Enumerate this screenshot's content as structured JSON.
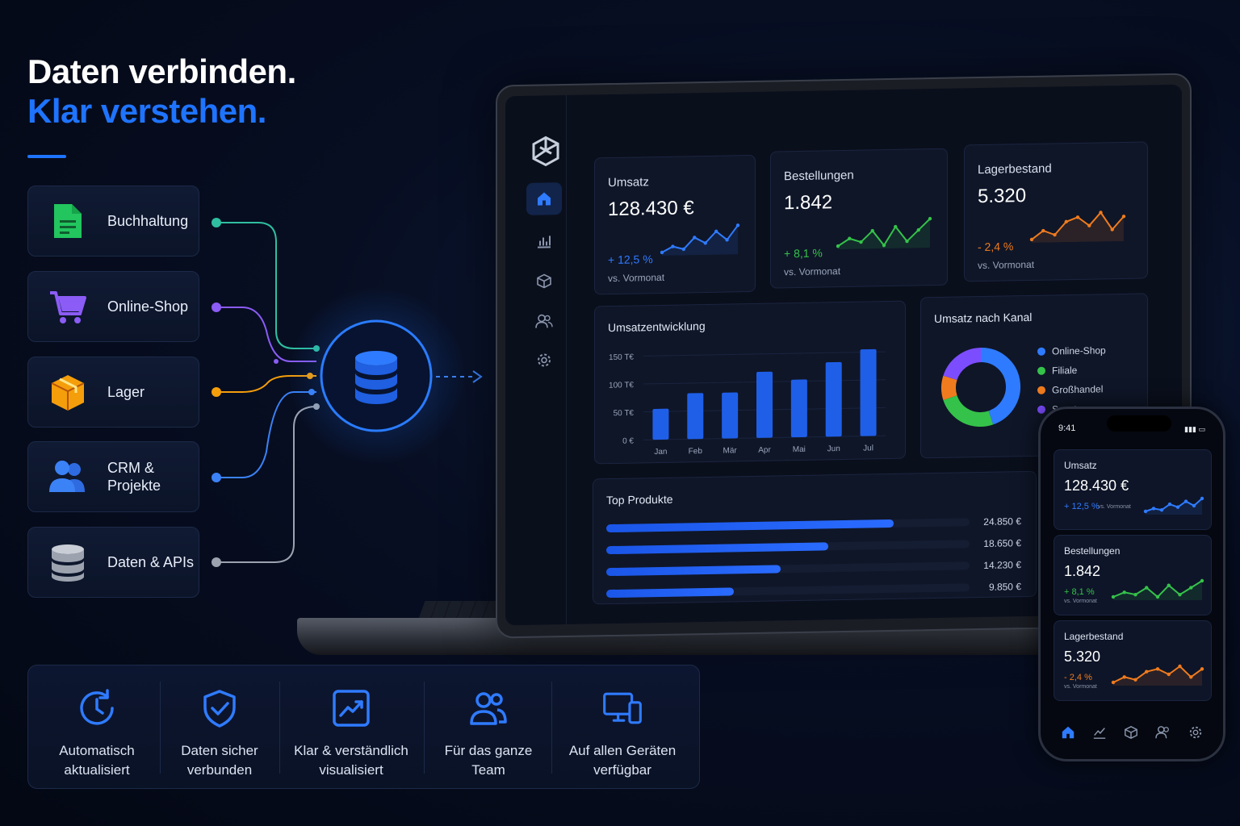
{
  "hero": {
    "line1": "Daten verbinden.",
    "line2": "Klar verstehen."
  },
  "sources": [
    {
      "label": "Buchhaltung",
      "icon": "spreadsheet-icon",
      "color": "#22c55e"
    },
    {
      "label": "Online-Shop",
      "icon": "shopping-cart-icon",
      "color": "#8b5cf6"
    },
    {
      "label": "Lager",
      "icon": "box-icon",
      "color": "#f59e0b"
    },
    {
      "label": "CRM &\nProjekte",
      "icon": "users-icon",
      "color": "#3b82f6"
    },
    {
      "label": "Daten & APIs",
      "icon": "database-icon",
      "color": "#9ca3af"
    }
  ],
  "hub": {
    "icon": "database-icon",
    "color": "#1f74ff"
  },
  "dashboard": {
    "nav": [
      "home-icon",
      "bar-chart-icon",
      "cube-icon",
      "users-icon",
      "settings-icon"
    ],
    "kpis": [
      {
        "title": "Umsatz",
        "value": "128.430 €",
        "delta": "+ 12,5 %",
        "vs": "vs. Vormonat",
        "color": "#2f7bff",
        "spark": [
          4,
          6,
          5,
          9,
          7,
          11,
          8,
          13
        ]
      },
      {
        "title": "Bestellungen",
        "value": "1.842",
        "delta": "+ 8,1 %",
        "vs": "vs. Vormonat",
        "color": "#35c24a",
        "spark": [
          5,
          7,
          6,
          9,
          5,
          10,
          6,
          9,
          12
        ]
      },
      {
        "title": "Lagerbestand",
        "value": "5.320",
        "delta": "- 2,4 %",
        "vs": "vs. Vormonat",
        "color": "#f07b1e",
        "spark": [
          4,
          6,
          5,
          8,
          9,
          7,
          10,
          6,
          9
        ]
      }
    ],
    "umsatzentwicklung": {
      "title": "Umsatzentwicklung",
      "chart_data": {
        "type": "bar",
        "categories": [
          "Jan",
          "Feb",
          "Mär",
          "Apr",
          "Mai",
          "Jun",
          "Jul"
        ],
        "values": [
          55,
          82,
          82,
          118,
          103,
          133,
          155
        ],
        "yticks": [
          "150 T€",
          "100 T€",
          "50 T€",
          "0 €"
        ],
        "ylim": [
          0,
          150
        ],
        "ylabel": "",
        "xlabel": "",
        "title": "Umsatzentwicklung"
      }
    },
    "kanal": {
      "title": "Umsatz nach Kanal",
      "legend": [
        {
          "label": "Online-Shop",
          "color": "#2f7bff"
        },
        {
          "label": "Filiale",
          "color": "#35c24a"
        },
        {
          "label": "Großhandel",
          "color": "#f07b1e"
        },
        {
          "label": "Sonst",
          "color": "#7c4dff"
        }
      ],
      "chart_data": {
        "type": "pie",
        "categories": [
          "Online-Shop",
          "Filiale",
          "Großhandel",
          "Sonst"
        ],
        "values": [
          45,
          25,
          10,
          20
        ]
      }
    },
    "top_produkte": {
      "title": "Top Produkte",
      "rows": [
        {
          "fraction": 0.79,
          "value": "24.850 €"
        },
        {
          "fraction": 0.61,
          "value": "18.650 €"
        },
        {
          "fraction": 0.48,
          "value": "14.230 €"
        },
        {
          "fraction": 0.35,
          "value": "9.850 €"
        }
      ]
    }
  },
  "phone": {
    "time": "9:41",
    "cards": [
      {
        "title": "Umsatz",
        "value": "128.430 €",
        "delta": "+ 12,5 %",
        "vs": "vs. Vormonat",
        "color": "#2f7bff"
      },
      {
        "title": "Bestellungen",
        "value": "1.842",
        "delta": "+ 8,1 %",
        "vs": "vs. Vormonat",
        "color": "#35c24a"
      },
      {
        "title": "Lagerbestand",
        "value": "5.320",
        "delta": "- 2,4 %",
        "vs": "vs. Vormonat",
        "color": "#f07b1e"
      }
    ],
    "nav": [
      "home-icon",
      "trend-icon",
      "cube-icon",
      "users-icon",
      "settings-icon"
    ]
  },
  "features": [
    {
      "label": "Automatisch\naktualisiert",
      "icon": "clock-refresh-icon"
    },
    {
      "label": "Daten sicher\nverbunden",
      "icon": "shield-check-icon"
    },
    {
      "label": "Klar & verständlich\nvisualisiert",
      "icon": "chart-trend-icon"
    },
    {
      "label": "Für das ganze\nTeam",
      "icon": "team-icon"
    },
    {
      "label": "Auf allen Geräten\nverfügbar",
      "icon": "devices-icon"
    }
  ]
}
